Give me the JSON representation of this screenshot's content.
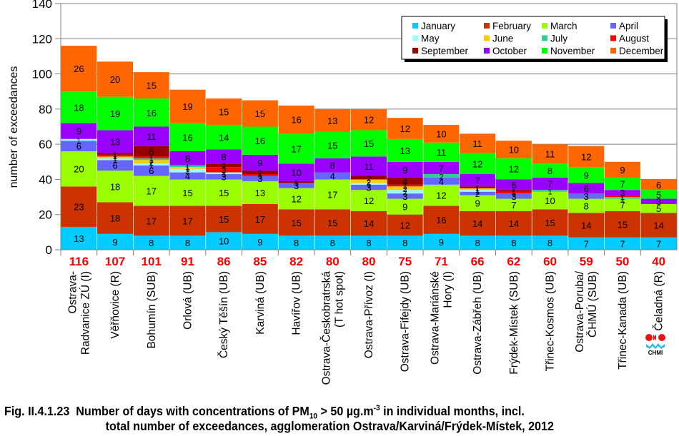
{
  "chart_data": {
    "type": "bar",
    "stacked": true,
    "title": "",
    "xlabel": "",
    "ylabel": "number of exceedances",
    "ylim": [
      0,
      140
    ],
    "yticks": [
      0,
      20,
      40,
      60,
      80,
      100,
      120,
      140
    ],
    "grid": true,
    "legend_position": "top-right",
    "categories": [
      [
        "Ostrava-",
        "Radvanice ZÚ (I)"
      ],
      [
        "Věřňovice (R)"
      ],
      [
        "Bohumín (SUB)"
      ],
      [
        "Orlová (UB)"
      ],
      [
        "Český Těšín (UB)"
      ],
      [
        "Karviná (UB)"
      ],
      [
        "Havířov (UB)"
      ],
      [
        "Ostrava-Českobratrská",
        "(T hot spot)"
      ],
      [
        "Ostrava-Přívoz (I)"
      ],
      [
        "Ostrava-Fifejdy (UB)"
      ],
      [
        "Ostrava-Mariánské",
        "Hory (I)"
      ],
      [
        "Ostrava-Zábřeh (UB)"
      ],
      [
        "Frýdek-Místek (SUB)"
      ],
      [
        "Třinec-Kosmos (UB)"
      ],
      [
        "Ostrava-Poruba/",
        "ČHMÚ (SUB)"
      ],
      [
        "Třinec-Kanada (UB)"
      ],
      [
        "Čeladná (R)"
      ]
    ],
    "totals": [
      116,
      107,
      101,
      91,
      86,
      85,
      82,
      80,
      80,
      75,
      71,
      66,
      62,
      60,
      59,
      50,
      40
    ],
    "series": [
      {
        "name": "January",
        "color": "#00CCFF",
        "values": [
          13,
          9,
          8,
          8,
          10,
          9,
          8,
          8,
          8,
          8,
          9,
          8,
          8,
          8,
          7,
          7,
          7
        ]
      },
      {
        "name": "February",
        "color": "#CC3300",
        "values": [
          23,
          18,
          17,
          17,
          15,
          17,
          15,
          15,
          14,
          12,
          16,
          14,
          14,
          15,
          14,
          15,
          14
        ]
      },
      {
        "name": "March",
        "color": "#99FF00",
        "values": [
          20,
          18,
          17,
          15,
          15,
          13,
          12,
          17,
          12,
          9,
          12,
          9,
          7,
          10,
          8,
          7,
          5
        ]
      },
      {
        "name": "April",
        "color": "#6666FF",
        "values": [
          6,
          6,
          6,
          4,
          3,
          3,
          3,
          4,
          3,
          3,
          4,
          2,
          3,
          0,
          3,
          0,
          0
        ]
      },
      {
        "name": "May",
        "color": "#99FFFF",
        "values": [
          1,
          1,
          1,
          2,
          1,
          0,
          0,
          0,
          1,
          2,
          0,
          1,
          0,
          0,
          0,
          0,
          0
        ]
      },
      {
        "name": "June",
        "color": "#FFCC00",
        "values": [
          0,
          1,
          2,
          1,
          0,
          0,
          0,
          0,
          2,
          2,
          0,
          1,
          0,
          0,
          0,
          0,
          0
        ]
      },
      {
        "name": "July",
        "color": "#33CC99",
        "values": [
          0,
          0,
          1,
          1,
          0,
          0,
          0,
          0,
          0,
          0,
          2,
          0,
          0,
          1,
          0,
          1,
          0
        ]
      },
      {
        "name": "August",
        "color": "#FF0000",
        "values": [
          0,
          1,
          1,
          0,
          3,
          1,
          0,
          0,
          0,
          1,
          0,
          0,
          1,
          0,
          0,
          1,
          0
        ]
      },
      {
        "name": "September",
        "color": "#990000",
        "values": [
          0,
          1,
          6,
          0,
          2,
          2,
          1,
          0,
          2,
          4,
          0,
          1,
          1,
          0,
          0,
          0,
          0
        ]
      },
      {
        "name": "October",
        "color": "#9900FF",
        "values": [
          9,
          13,
          11,
          8,
          8,
          9,
          10,
          8,
          11,
          9,
          7,
          7,
          6,
          7,
          6,
          3,
          3
        ]
      },
      {
        "name": "November",
        "color": "#00FF00",
        "values": [
          18,
          19,
          16,
          16,
          14,
          16,
          17,
          15,
          15,
          13,
          11,
          12,
          12,
          8,
          9,
          7,
          5
        ]
      },
      {
        "name": "December",
        "color": "#FF6600",
        "values": [
          26,
          20,
          15,
          19,
          15,
          15,
          16,
          13,
          12,
          12,
          10,
          11,
          10,
          11,
          12,
          9,
          6
        ]
      }
    ],
    "total_label_color": "#FF0000"
  },
  "caption": {
    "fig_number": "Fig. II.4.1.23",
    "line1_a": "Number of days with concentrations of PM",
    "pm_sub": "10",
    "line1_b": " > 50 µg.m",
    "unit_sup": "-3",
    "line1_c": " in individual months, incl.",
    "line2": "total number of exceedances, agglomeration Ostrava/Karviná/Frýdek-Místek, 2012"
  },
  "logo": {
    "text": "CHMI"
  }
}
